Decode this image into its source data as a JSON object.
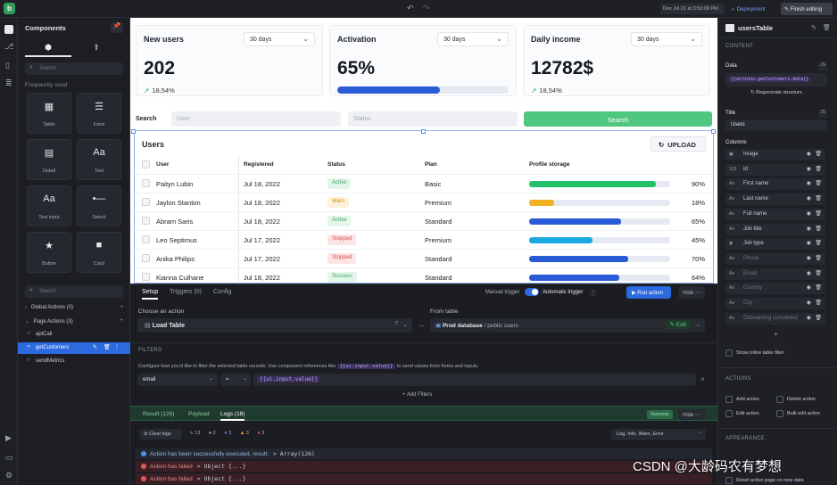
{
  "topbar": {
    "logo": "b",
    "date": "Dev Jul 21 at 3:53:09 PM",
    "deployment": "Deployment",
    "finish": "Finish editing"
  },
  "components": {
    "title": "Components",
    "search_placeholder": "Search",
    "section": "Frequently used",
    "items": [
      {
        "label": "Table",
        "glyph": "▦"
      },
      {
        "label": "Form",
        "glyph": "☰"
      },
      {
        "label": "Detail",
        "glyph": "▤"
      },
      {
        "label": "Text",
        "glyph": "Aa"
      },
      {
        "label": "Text input",
        "glyph": "Aa"
      },
      {
        "label": "Select",
        "glyph": "•—"
      },
      {
        "label": "Button",
        "glyph": "★"
      },
      {
        "label": "Card",
        "glyph": "■"
      }
    ]
  },
  "queries": {
    "search_placeholder": "Search",
    "global_actions": "Global Actions (0)",
    "page_actions": "Page Actions (3)",
    "items": [
      "apiCall",
      "getCustomers",
      "sendMetrics"
    ]
  },
  "cards": [
    {
      "title": "New users",
      "period": "30 days",
      "value": "202",
      "trend": "18,54%",
      "progress": null
    },
    {
      "title": "Activation",
      "period": "30 days",
      "value": "65%",
      "trend": null,
      "progress": 0.6
    },
    {
      "title": "Daily income",
      "period": "30 days",
      "value": "12782$",
      "trend": "18,54%",
      "progress": null
    }
  ],
  "search": {
    "label": "Search",
    "user_placeholder": "User",
    "status_placeholder": "Status",
    "button": "Search"
  },
  "users_table": {
    "title": "Users",
    "upload": "UPLOAD",
    "columns": [
      "User",
      "Registered",
      "Status",
      "Plan",
      "Profile storage"
    ],
    "rows": [
      {
        "user": "Paityn Lubin",
        "registered": "Jul 18, 2022",
        "status": "Active",
        "plan": "Basic",
        "storage": 90,
        "storage_label": "90%",
        "color": "#22c06b"
      },
      {
        "user": "Jaylon Stanton",
        "registered": "Jul 18, 2022",
        "status": "Warn",
        "plan": "Premium",
        "storage": 18,
        "storage_label": "18%",
        "color": "#f0b020"
      },
      {
        "user": "Abram Saris",
        "registered": "Jul 18, 2022",
        "status": "Active",
        "plan": "Standard",
        "storage": 65,
        "storage_label": "65%",
        "color": "#2a5bd7"
      },
      {
        "user": "Leo Septimus",
        "registered": "Jul 17, 2022",
        "status": "Stopped",
        "plan": "Premium",
        "storage": 45,
        "storage_label": "45%",
        "color": "#1aa9e0"
      },
      {
        "user": "Anika Philips",
        "registered": "Jul 17, 2022",
        "status": "Stopped",
        "plan": "Standard",
        "storage": 70,
        "storage_label": "70%",
        "color": "#2a5bd7"
      },
      {
        "user": "Kianna Culhane",
        "registered": "Jul 18, 2022",
        "status": "Success",
        "plan": "Standard",
        "storage": 64,
        "storage_label": "64%",
        "color": "#2a5bd7"
      }
    ]
  },
  "bottom": {
    "tabs": [
      "Setup",
      "Triggers (0)",
      "Config"
    ],
    "manual_trigger": "Manual trigger",
    "automatic_trigger": "Automatic trigger",
    "run_action": "Run action",
    "hide": "Hide",
    "choose_action": "Choose an action",
    "action_value": "Load Table",
    "from_table": "From table",
    "table_value_db": "Prod database",
    "table_value_path": "/ public users",
    "edit": "Edit",
    "filters_title": "FILTERS",
    "filters_desc": "Configure how you'd like to filter the selected table records. Use component references like",
    "filters_code": "{{ui.input.value}}",
    "filters_desc2": "to send values from forms and inputs.",
    "filter_field": "email",
    "filter_op": "=",
    "filter_value": "{{ui.input.value}}",
    "add_filters": "+ Add Filters",
    "result_tabs": [
      "Result (126)",
      "Payload",
      "Logs (18)"
    ],
    "success": "Success",
    "clear_logs": "Clear logs",
    "counts": [
      "13",
      "2",
      "3",
      "3",
      "3"
    ],
    "log_filter": "Log, Info, Warn, Error",
    "logs": [
      {
        "text": "Action has been successfully executed, result:",
        "code": "> Array(126)",
        "type": "info"
      },
      {
        "text": "Action has failed",
        "code": "> Object {...}",
        "type": "error"
      },
      {
        "text": "Action has failed",
        "code": "> Object {...}",
        "type": "error"
      }
    ]
  },
  "inspector": {
    "component_name": "usersTable",
    "content": "CONTENT",
    "data_label": "Data",
    "data_value": "{{actions.getCustomers.data}}",
    "regenerate": "Regenerate structure",
    "title_label": "Title",
    "title_value": "Users",
    "columns_label": "Columns",
    "columns": [
      {
        "name": "Image",
        "icon": "▣",
        "dim": false
      },
      {
        "name": "Id",
        "icon": "123",
        "dim": false
      },
      {
        "name": "First name",
        "icon": "A≡",
        "dim": false
      },
      {
        "name": "Last name",
        "icon": "A≡",
        "dim": false
      },
      {
        "name": "Full name",
        "icon": "A≡",
        "dim": false
      },
      {
        "name": "Job title",
        "icon": "A≡",
        "dim": false
      },
      {
        "name": "Job type",
        "icon": "◉",
        "dim": false
      },
      {
        "name": "Phone",
        "icon": "A≡",
        "dim": true
      },
      {
        "name": "Email",
        "icon": "A≡",
        "dim": true
      },
      {
        "name": "Country",
        "icon": "A≡",
        "dim": true
      },
      {
        "name": "City",
        "icon": "A≡",
        "dim": true
      },
      {
        "name": "Onboarding completed",
        "icon": "A≡",
        "dim": true
      }
    ],
    "show_inline_filter": "Show inline table filter",
    "actions_label": "ACTIONS",
    "add_action": "Add action",
    "delete_action": "Delete action",
    "edit_action": "Edit action",
    "bulk_edit_action": "Bulk edit action",
    "appearance": "APPEARANCE",
    "reset_page": "Reset active page on new data"
  },
  "watermark": "CSDN @大龄码农有梦想",
  "colors": {
    "accent": "#2a5bd7",
    "green": "#4fc77f",
    "highlight": "#2d6ae0"
  }
}
